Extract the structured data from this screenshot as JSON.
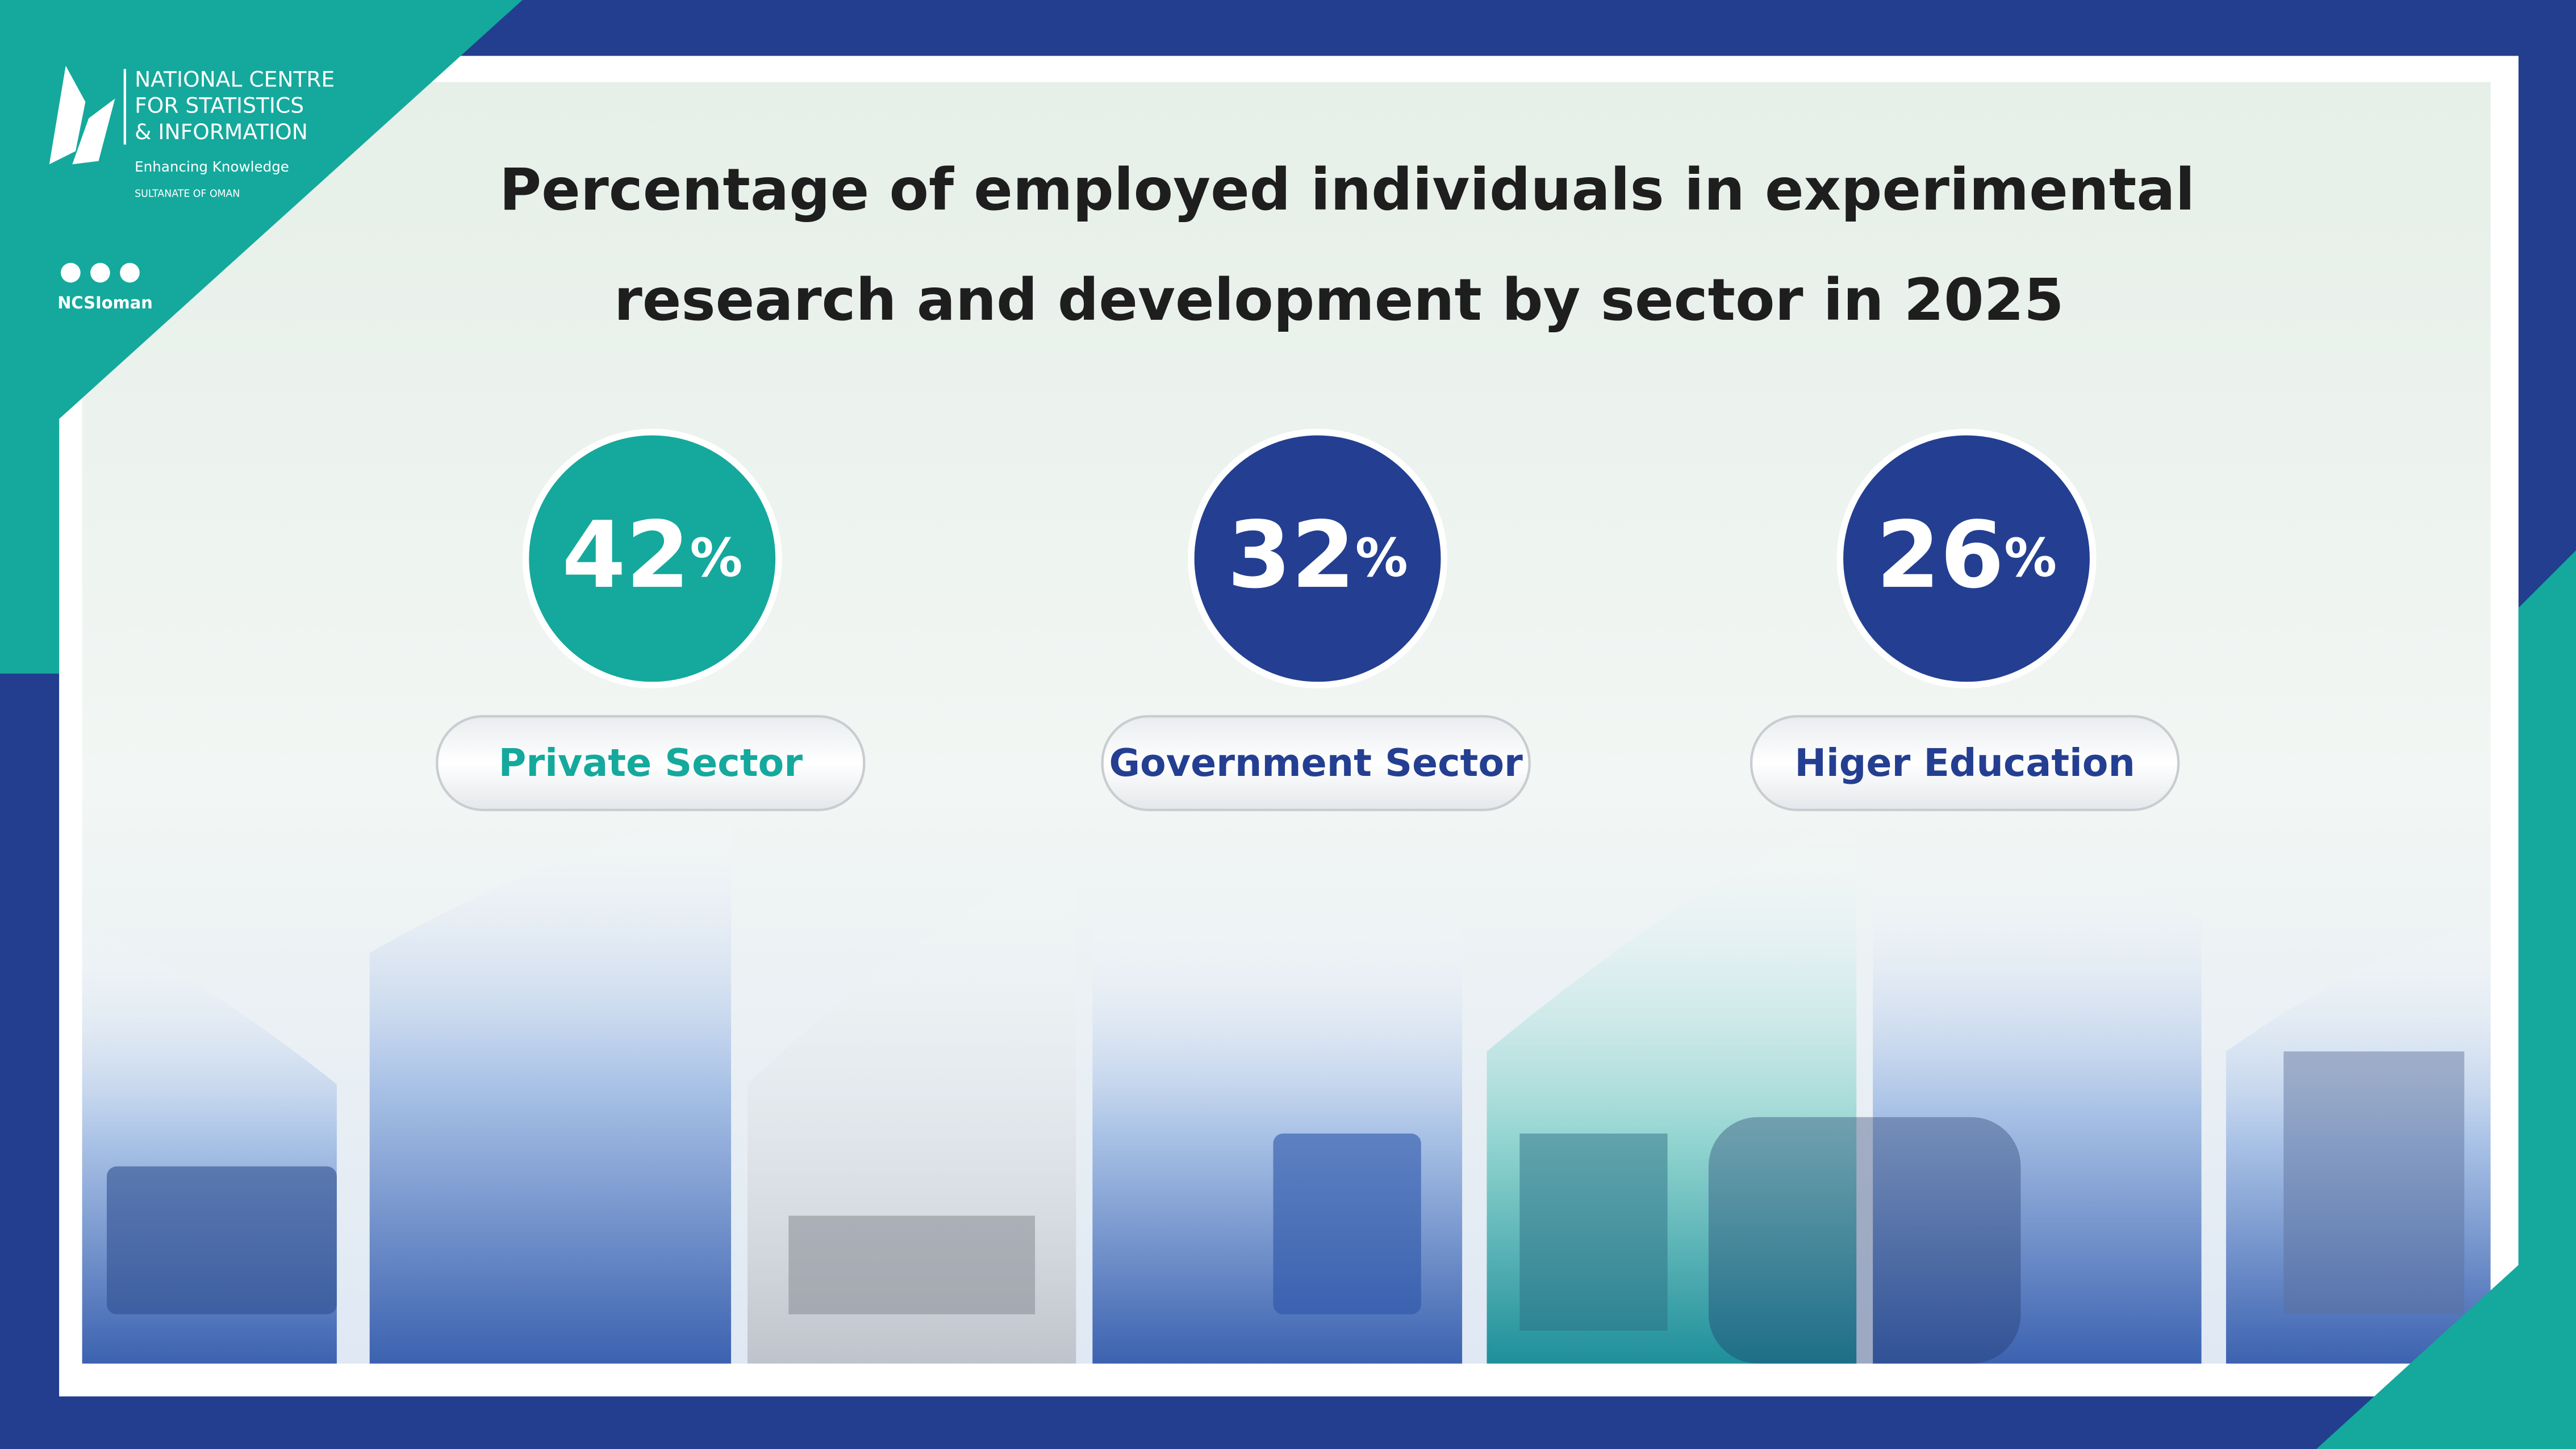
{
  "header": {
    "org_lines": [
      "NATIONAL CENTRE",
      "FOR STATISTICS",
      "& INFORMATION"
    ],
    "tagline": "Enhancing Knowledge",
    "country": "SULTANATE OF OMAN",
    "handle": "NCSIoman"
  },
  "title_lines": [
    "Percentage of employed individuals in experimental",
    "research and development by sector in 2025"
  ],
  "stats": [
    {
      "value": 42,
      "unit": "%",
      "label": "Private Sector",
      "color": "#14a99c"
    },
    {
      "value": 32,
      "unit": "%",
      "label": "Government Sector",
      "color": "#243f91"
    },
    {
      "value": 26,
      "unit": "%",
      "label": "Higer Education",
      "color": "#243f91"
    }
  ]
}
